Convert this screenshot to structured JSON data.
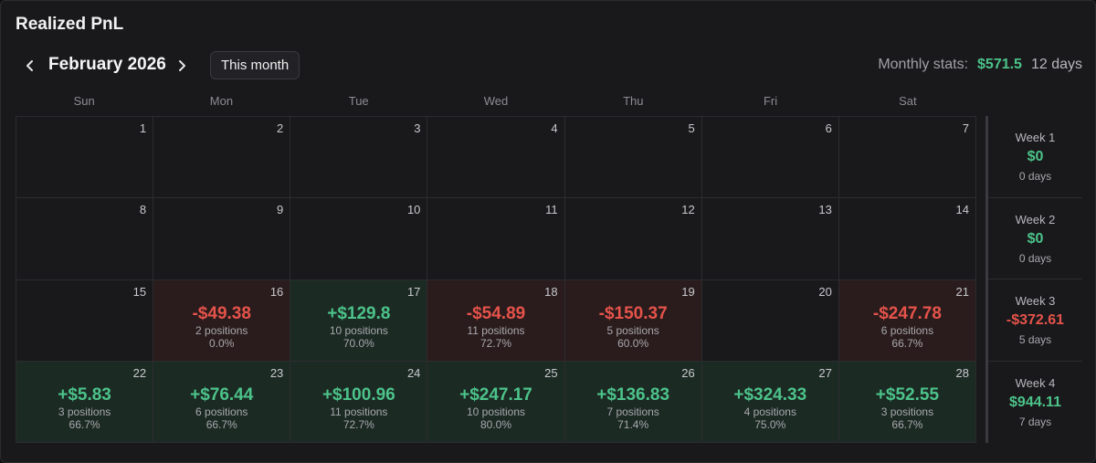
{
  "title": "Realized PnL",
  "nav": {
    "month_label": "February 2026",
    "this_month_label": "This month",
    "prev_icon": "chevron-left-icon",
    "next_icon": "chevron-right-icon"
  },
  "stats": {
    "label": "Monthly stats:",
    "value": "$571.5",
    "days": "12 days"
  },
  "colors": {
    "positive": "#4cc38a",
    "negative": "#e5534b"
  },
  "weekdays": [
    "Sun",
    "Mon",
    "Tue",
    "Wed",
    "Thu",
    "Fri",
    "Sat"
  ],
  "days": [
    {
      "day": "1"
    },
    {
      "day": "2"
    },
    {
      "day": "3"
    },
    {
      "day": "4"
    },
    {
      "day": "5"
    },
    {
      "day": "6"
    },
    {
      "day": "7"
    },
    {
      "day": "8"
    },
    {
      "day": "9"
    },
    {
      "day": "10"
    },
    {
      "day": "11"
    },
    {
      "day": "12"
    },
    {
      "day": "13"
    },
    {
      "day": "14"
    },
    {
      "day": "15"
    },
    {
      "day": "16",
      "pnl": "-$49.38",
      "sign": "neg",
      "positions": "2 positions",
      "winrate": "0.0%"
    },
    {
      "day": "17",
      "pnl": "+$129.8",
      "sign": "pos",
      "positions": "10 positions",
      "winrate": "70.0%"
    },
    {
      "day": "18",
      "pnl": "-$54.89",
      "sign": "neg",
      "positions": "11 positions",
      "winrate": "72.7%"
    },
    {
      "day": "19",
      "pnl": "-$150.37",
      "sign": "neg",
      "positions": "5 positions",
      "winrate": "60.0%"
    },
    {
      "day": "20"
    },
    {
      "day": "21",
      "pnl": "-$247.78",
      "sign": "neg",
      "positions": "6 positions",
      "winrate": "66.7%"
    },
    {
      "day": "22",
      "pnl": "+$5.83",
      "sign": "pos",
      "positions": "3 positions",
      "winrate": "66.7%"
    },
    {
      "day": "23",
      "pnl": "+$76.44",
      "sign": "pos",
      "positions": "6 positions",
      "winrate": "66.7%"
    },
    {
      "day": "24",
      "pnl": "+$100.96",
      "sign": "pos",
      "positions": "11 positions",
      "winrate": "72.7%"
    },
    {
      "day": "25",
      "pnl": "+$247.17",
      "sign": "pos",
      "positions": "10 positions",
      "winrate": "80.0%"
    },
    {
      "day": "26",
      "pnl": "+$136.83",
      "sign": "pos",
      "positions": "7 positions",
      "winrate": "71.4%"
    },
    {
      "day": "27",
      "pnl": "+$324.33",
      "sign": "pos",
      "positions": "4 positions",
      "winrate": "75.0%"
    },
    {
      "day": "28",
      "pnl": "+$52.55",
      "sign": "pos",
      "positions": "3 positions",
      "winrate": "66.7%"
    }
  ],
  "weeks": [
    {
      "label": "Week 1",
      "value": "$0",
      "sign": "pos",
      "days": "0 days"
    },
    {
      "label": "Week 2",
      "value": "$0",
      "sign": "pos",
      "days": "0 days"
    },
    {
      "label": "Week 3",
      "value": "-$372.61",
      "sign": "neg",
      "days": "5 days"
    },
    {
      "label": "Week 4",
      "value": "$944.11",
      "sign": "pos",
      "days": "7 days"
    }
  ]
}
